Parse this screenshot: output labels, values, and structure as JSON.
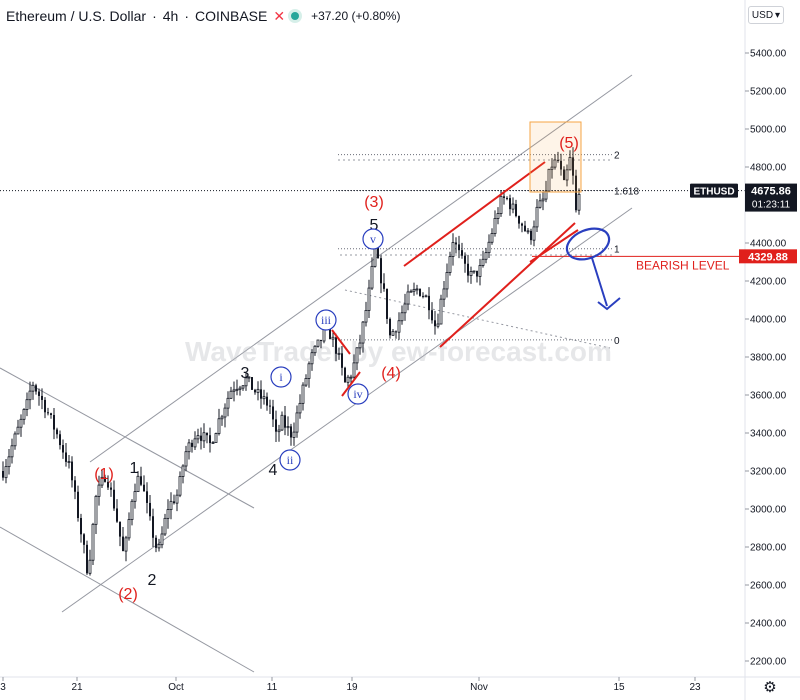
{
  "header": {
    "symbol": "Ethereum / U.S. Dollar",
    "interval": "4h",
    "exchange": "COINBASE",
    "change": "+37.20 (+0.80%)",
    "currency": "USD",
    "close_icon": "close-x-icon",
    "status_icon": "market-open-dot-icon",
    "currency_icon": "chevron-down-icon",
    "settings_icon": "gear-icon"
  },
  "colors": {
    "up": "#131722",
    "down": "#131722",
    "wave_red": "#e0201c",
    "wave_blue": "#2a3fbf",
    "target_box": "#f5a545",
    "channel": "#9598a1",
    "level_red": "#e0201c"
  },
  "watermark": "WaveTrader by ew-forecast.com",
  "chart_data": {
    "type": "candlestick",
    "title": "Ethereum / U.S. Dollar",
    "interval": "4h",
    "ylim": [
      2150,
      5600
    ],
    "yticks": [
      2200,
      2400,
      2600,
      2800,
      3000,
      3200,
      3400,
      3600,
      3800,
      4000,
      4200,
      4400,
      4600,
      4800,
      5000,
      5200,
      5400
    ],
    "ytick_labels": [
      "2200.00",
      "2400.00",
      "2600.00",
      "2800.00",
      "3000.00",
      "3200.00",
      "3400.00",
      "3600.00",
      "3800.00",
      "4000.00",
      "4200.00",
      "4400.00",
      "4600.00",
      "4800.00",
      "5000.00",
      "5200.00",
      "5400.00"
    ],
    "x_tick_labels": [
      "3",
      "21",
      "Oct",
      "11",
      "19",
      "Nov",
      "15",
      "23"
    ],
    "price_path": [
      [
        3,
        3200
      ],
      [
        28,
        3560
      ],
      [
        32,
        3670
      ],
      [
        45,
        3540
      ],
      [
        58,
        3380
      ],
      [
        70,
        3210
      ],
      [
        80,
        2910
      ],
      [
        88,
        2660
      ],
      [
        96,
        3060
      ],
      [
        106,
        3190
      ],
      [
        115,
        3000
      ],
      [
        124,
        2740
      ],
      [
        133,
        3100
      ],
      [
        140,
        3180
      ],
      [
        150,
        2930
      ],
      [
        158,
        2760
      ],
      [
        168,
        3010
      ],
      [
        178,
        3080
      ],
      [
        185,
        3290
      ],
      [
        197,
        3410
      ],
      [
        210,
        3340
      ],
      [
        222,
        3510
      ],
      [
        232,
        3640
      ],
      [
        246,
        3680
      ],
      [
        258,
        3600
      ],
      [
        270,
        3540
      ],
      [
        276,
        3380
      ],
      [
        282,
        3460
      ],
      [
        292,
        3390
      ],
      [
        300,
        3560
      ],
      [
        310,
        3780
      ],
      [
        320,
        3880
      ],
      [
        327,
        3960
      ],
      [
        337,
        3830
      ],
      [
        345,
        3660
      ],
      [
        352,
        3720
      ],
      [
        360,
        3880
      ],
      [
        368,
        4100
      ],
      [
        375,
        4360
      ],
      [
        383,
        4170
      ],
      [
        390,
        3910
      ],
      [
        398,
        3980
      ],
      [
        408,
        4110
      ],
      [
        418,
        4160
      ],
      [
        428,
        4100
      ],
      [
        436,
        3950
      ],
      [
        445,
        4210
      ],
      [
        453,
        4420
      ],
      [
        462,
        4300
      ],
      [
        472,
        4220
      ],
      [
        482,
        4270
      ],
      [
        490,
        4420
      ],
      [
        500,
        4610
      ],
      [
        506,
        4640
      ],
      [
        514,
        4570
      ],
      [
        522,
        4500
      ],
      [
        530,
        4420
      ],
      [
        537,
        4570
      ],
      [
        545,
        4640
      ],
      [
        551,
        4810
      ],
      [
        558,
        4830
      ],
      [
        564,
        4700
      ],
      [
        571,
        4860
      ],
      [
        576,
        4560
      ],
      [
        580,
        4676
      ]
    ],
    "last_price_label": "ETHUSD",
    "last_price": "4675.86",
    "countdown": "01:23:11",
    "bearish_level_label": "BEARISH LEVEL",
    "bearish_level_price": "4329.88",
    "bearish_level": 4329.88,
    "fib_levels": [
      {
        "label": "2",
        "price": 4865
      },
      {
        "label": "1.618",
        "price": 4676
      },
      {
        "label": "1",
        "price": 4370
      },
      {
        "label": "0",
        "price": 3890
      }
    ],
    "wave_labels": [
      {
        "text": "(1)",
        "color": "red"
      },
      {
        "text": "(2)",
        "color": "red"
      },
      {
        "text": "(3)",
        "color": "red"
      },
      {
        "text": "(4)",
        "color": "red"
      },
      {
        "text": "(5)",
        "color": "red"
      },
      {
        "text": "1",
        "color": "black"
      },
      {
        "text": "2",
        "color": "black"
      },
      {
        "text": "3",
        "color": "black"
      },
      {
        "text": "4",
        "color": "black"
      },
      {
        "text": "5",
        "color": "black"
      },
      {
        "text": "i",
        "color": "blue"
      },
      {
        "text": "ii",
        "color": "blue"
      },
      {
        "text": "iii",
        "color": "blue"
      },
      {
        "text": "iv",
        "color": "blue"
      },
      {
        "text": "v",
        "color": "blue"
      }
    ]
  }
}
